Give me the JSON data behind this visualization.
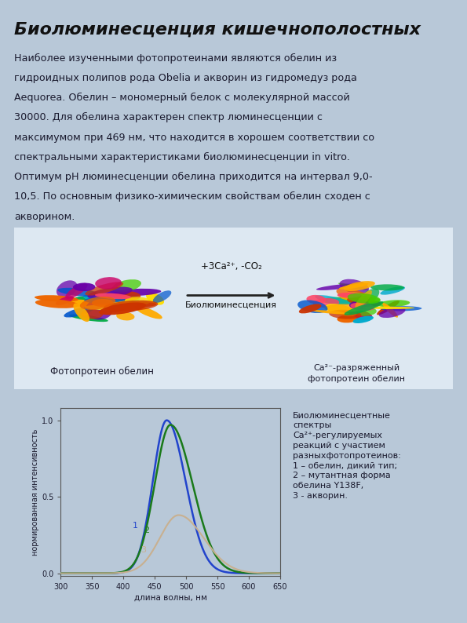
{
  "title": "Биолюминесценция кишечнополостных",
  "bg_color": "#b8c8d8",
  "text_color": "#1a1a2e",
  "body_text": "Наиболее изученными фотопротеинами являются обелин из\nгидроидных полипов рода Obelia и акворин из гидромедуз рода\nAequorea. Обелин – мономерный белок с молекулярной массой\n30000. Для обелина характерен спектр люминесценции с\nмаксимумом при 469 нм, что находится в хорошем соответствии со\nспектральными характеристиками биолюминесценции in vitro.\nОптимум рН люминесценции обелина приходится на интервал 9,0-\n10,5. По основным физико-химическим свойствам обелин сходен с\nакворином.",
  "reaction_label": "+3Ca²⁺, -CO₂",
  "biolum_label": "Биолюминесценция",
  "protein1_label": "Фотопротеин обелин",
  "protein2_line1": "Ca²⁻-разряженный",
  "protein2_line2": "фотопротеин обелин",
  "chart_annotation": "Биолюминесцентные\nспектры\nCa²⁺-регулируемых\nреакций с участием\nразныхфотопротеинов:\n1 – обелин, дикий тип;\n2 – мутантная форма\nобелина Y138F,\n3 - акворин.",
  "xlabel": "длина волны, нм",
  "ylabel": "нормированная интенсивность",
  "xlim": [
    300,
    650
  ],
  "ylim": [
    0.0,
    1.08
  ],
  "xticks": [
    300,
    350,
    400,
    450,
    500,
    550,
    600,
    650
  ],
  "yticks": [
    0.0,
    0.5,
    1.0
  ],
  "line1_color": "#2244cc",
  "line2_color": "#1a7a1a",
  "line3_color": "#c8b090"
}
